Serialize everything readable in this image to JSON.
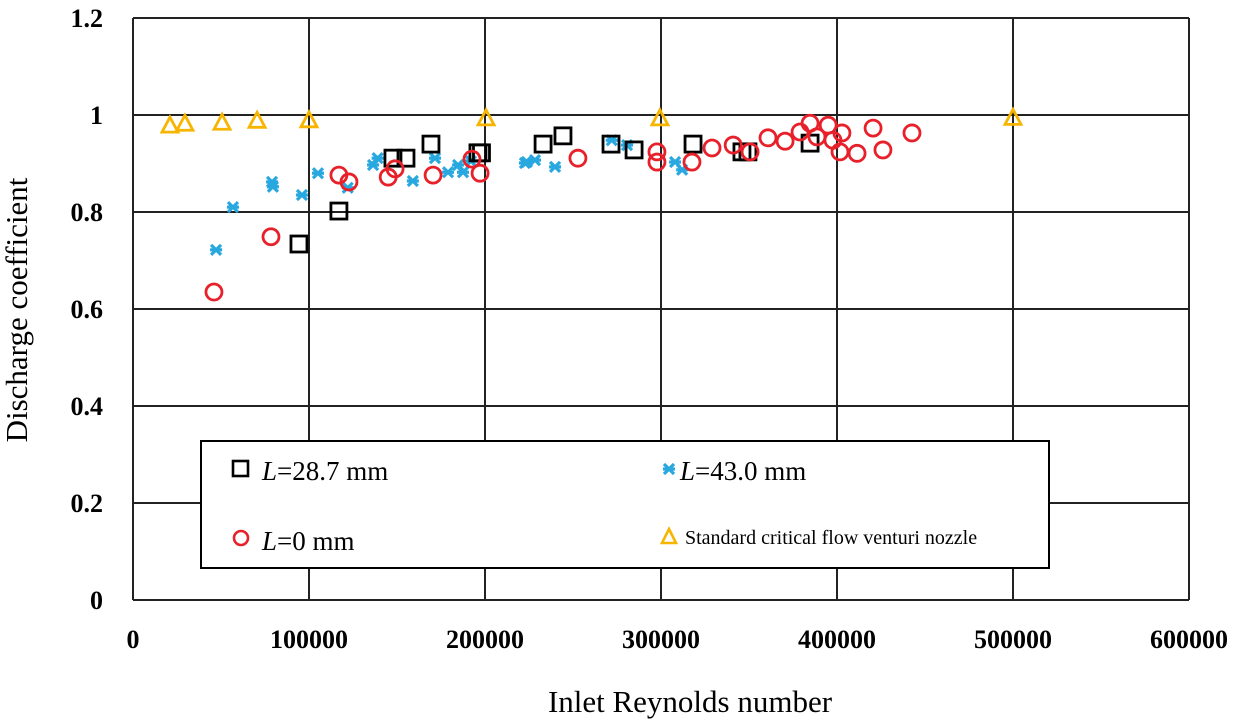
{
  "chart_data": {
    "type": "scatter",
    "title": "",
    "xlabel": "Inlet Reynolds number",
    "ylabel": "Discharge coefficient",
    "xlim": [
      0,
      600000
    ],
    "ylim": [
      0,
      1.2
    ],
    "x_ticks": [
      "0",
      "100000",
      "200000",
      "300000",
      "400000",
      "500000",
      "600000"
    ],
    "y_ticks": [
      "0",
      "0.2",
      "0.4",
      "0.6",
      "0.8",
      "1",
      "1.2"
    ],
    "grid": true,
    "legend_position": "bottom-center inside plot",
    "series": [
      {
        "name_prefix": "L",
        "name_suffix": "=28.7 mm",
        "marker": "square",
        "color": "#000000",
        "x": [
          94300,
          117000,
          147700,
          155100,
          169300,
          196000,
          198000,
          233000,
          244300,
          271600,
          284700,
          318200,
          346000,
          349400,
          384700
        ],
        "y": [
          0.734,
          0.802,
          0.911,
          0.911,
          0.94,
          0.922,
          0.922,
          0.94,
          0.957,
          0.94,
          0.928,
          0.94,
          0.924,
          0.924,
          0.942
        ]
      },
      {
        "name_prefix": "L",
        "name_suffix": "=43.0 mm",
        "marker": "cross",
        "color": "#29a8e0",
        "x": [
          47200,
          56800,
          79000,
          79500,
          96000,
          105100,
          122000,
          136400,
          139000,
          159000,
          171600,
          179000,
          184700,
          187500,
          192000,
          222700,
          223800,
          228400,
          239800,
          272000,
          280700,
          308000,
          312000
        ],
        "y": [
          0.722,
          0.81,
          0.862,
          0.852,
          0.835,
          0.88,
          0.85,
          0.897,
          0.911,
          0.864,
          0.911,
          0.882,
          0.897,
          0.882,
          0.905,
          0.901,
          0.903,
          0.907,
          0.893,
          0.948,
          0.938,
          0.903,
          0.887
        ]
      },
      {
        "name_prefix": "L",
        "name_suffix": "=0 mm",
        "marker": "circle",
        "color": "#e8202a",
        "x": [
          46000,
          78400,
          117000,
          122700,
          145000,
          148900,
          170500,
          192600,
          197200,
          252800,
          297700,
          297700,
          317600,
          329000,
          341000,
          350600,
          360800,
          370500,
          379000,
          384700,
          388600,
          395000,
          397700,
          402800,
          401700,
          411400,
          420500,
          426100,
          442600
        ],
        "y": [
          0.635,
          0.749,
          0.876,
          0.862,
          0.872,
          0.889,
          0.876,
          0.909,
          0.88,
          0.911,
          0.924,
          0.903,
          0.903,
          0.932,
          0.938,
          0.924,
          0.953,
          0.946,
          0.965,
          0.983,
          0.955,
          0.979,
          0.948,
          0.963,
          0.924,
          0.921,
          0.973,
          0.928,
          0.963
        ]
      },
      {
        "name": "Standard critical flow venturi nozzle",
        "marker": "triangle",
        "color": "#f7b500",
        "x": [
          21000,
          29500,
          50600,
          70500,
          100000,
          200600,
          299400,
          500000
        ],
        "y": [
          0.977,
          0.981,
          0.983,
          0.987,
          0.988,
          0.992,
          0.992,
          0.993
        ]
      }
    ]
  }
}
